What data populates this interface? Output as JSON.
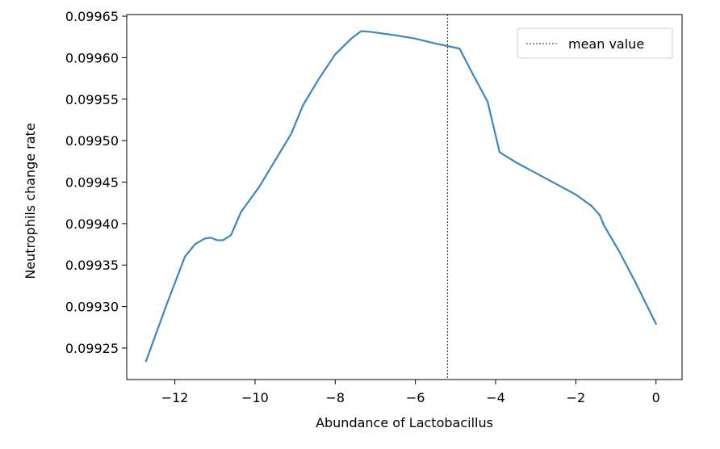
{
  "chart_data": {
    "type": "line",
    "title": "",
    "xlabel": "Abundance of Lactobacillus",
    "ylabel": "Neutrophils change rate",
    "xlim": [
      -13.2,
      0.65
    ],
    "ylim": [
      0.099212,
      0.099652
    ],
    "x_ticks": [
      -12,
      -10,
      -8,
      -6,
      -4,
      -2,
      0
    ],
    "x_tick_labels": [
      "−12",
      "−10",
      "−8",
      "−6",
      "−4",
      "−2",
      "0"
    ],
    "y_ticks": [
      0.09925,
      0.0993,
      0.09935,
      0.0994,
      0.09945,
      0.0995,
      0.09955,
      0.0996,
      0.09965
    ],
    "y_tick_labels": [
      "0.09925",
      "0.09930",
      "0.09935",
      "0.09940",
      "0.09945",
      "0.09950",
      "0.09955",
      "0.09960",
      "0.09965"
    ],
    "grid": false,
    "legend": {
      "location": "top-right",
      "entries": [
        "mean value"
      ]
    },
    "mean_value_x": -5.2,
    "series": [
      {
        "color": "#3a86c0",
        "x": [
          -12.72,
          -12.2,
          -11.75,
          -11.5,
          -11.25,
          -11.1,
          -10.95,
          -10.8,
          -10.6,
          -10.35,
          -9.9,
          -9.5,
          -9.1,
          -8.8,
          -8.4,
          -8.0,
          -7.6,
          -7.35,
          -7.1,
          -6.5,
          -6.0,
          -5.5,
          -4.9,
          -4.6,
          -4.2,
          -3.9,
          -3.5,
          -3.0,
          -2.5,
          -2.0,
          -1.6,
          -1.4,
          -1.3,
          -0.9,
          -0.5,
          0.0
        ],
        "y": [
          0.099234,
          0.099303,
          0.09936,
          0.099375,
          0.099382,
          0.099383,
          0.09938,
          0.09938,
          0.099386,
          0.099414,
          0.099444,
          0.099476,
          0.099508,
          0.099543,
          0.099575,
          0.099604,
          0.099623,
          0.099632,
          0.099631,
          0.099627,
          0.099623,
          0.099617,
          0.099611,
          0.099583,
          0.099547,
          0.099486,
          0.099474,
          0.099461,
          0.099448,
          0.099435,
          0.099421,
          0.09941,
          0.099398,
          0.099365,
          0.099328,
          0.099279
        ]
      }
    ]
  }
}
